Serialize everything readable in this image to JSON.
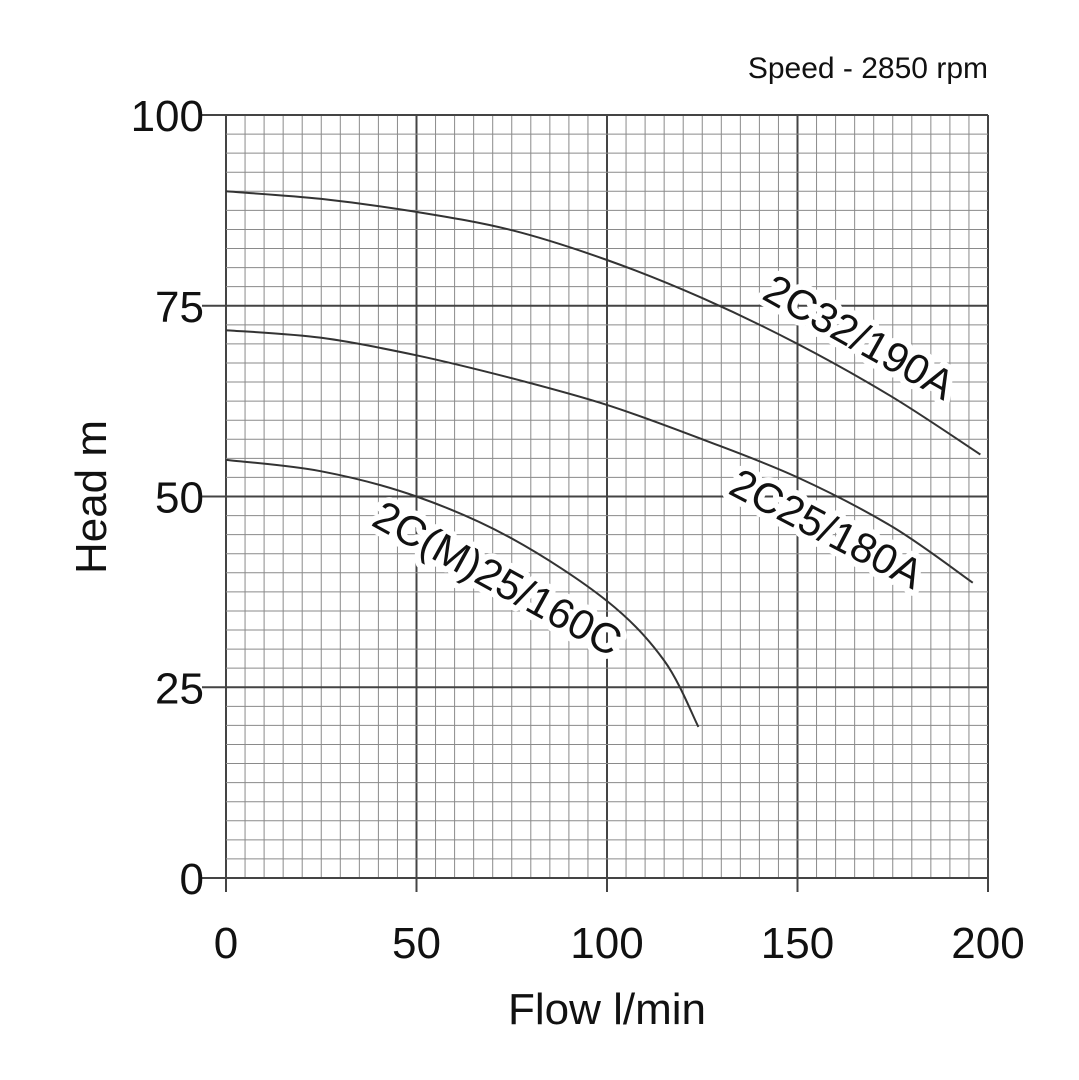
{
  "chart_data": {
    "type": "line",
    "title": "",
    "annotation": "Speed - 2850 rpm",
    "xlabel": "Flow l/min",
    "ylabel": "Head m",
    "xlim": [
      0,
      200
    ],
    "ylim": [
      0,
      100
    ],
    "x_ticks": [
      0,
      50,
      100,
      150,
      200
    ],
    "y_ticks": [
      0,
      25,
      50,
      75,
      100
    ],
    "grid": true,
    "series": [
      {
        "name": "2C32/190A",
        "x": [
          0,
          25,
          50,
          75,
          100,
          125,
          150,
          175,
          198
        ],
        "y": [
          90,
          89,
          87.3,
          84.9,
          81,
          76,
          70,
          63,
          55.5
        ]
      },
      {
        "name": "2C25/180A",
        "x": [
          0,
          25,
          50,
          75,
          100,
          125,
          150,
          175,
          196
        ],
        "y": [
          71.8,
          70.8,
          68.5,
          65.5,
          62,
          57.5,
          52.5,
          46,
          38.7
        ]
      },
      {
        "name": "2C(M)25/160C",
        "x": [
          0,
          25,
          50,
          75,
          100,
          115,
          124
        ],
        "y": [
          54.8,
          53.3,
          50,
          44.5,
          36.3,
          28.5,
          19.8
        ]
      }
    ]
  }
}
